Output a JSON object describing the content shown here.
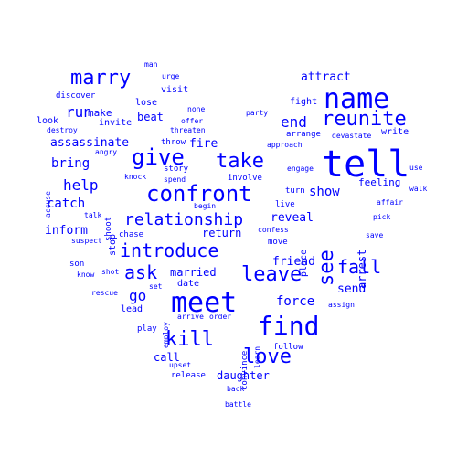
{
  "word_color": "#0000ff",
  "background": "#ffffff",
  "words": [
    {
      "text": "tell",
      "orientation": "horizontal"
    },
    {
      "text": "name",
      "orientation": "horizontal"
    },
    {
      "text": "meet",
      "orientation": "horizontal"
    },
    {
      "text": "find",
      "orientation": "horizontal"
    },
    {
      "text": "confront",
      "orientation": "horizontal"
    },
    {
      "text": "reunite",
      "orientation": "horizontal"
    },
    {
      "text": "marry",
      "orientation": "horizontal"
    },
    {
      "text": "give",
      "orientation": "horizontal"
    },
    {
      "text": "take",
      "orientation": "horizontal"
    },
    {
      "text": "leave",
      "orientation": "horizontal"
    },
    {
      "text": "love",
      "orientation": "horizontal"
    },
    {
      "text": "kill",
      "orientation": "horizontal"
    },
    {
      "text": "see",
      "orientation": "vertical"
    },
    {
      "text": "introduce",
      "orientation": "horizontal"
    },
    {
      "text": "relationship",
      "orientation": "horizontal"
    },
    {
      "text": "ask",
      "orientation": "horizontal"
    },
    {
      "text": "fall",
      "orientation": "horizontal"
    },
    {
      "text": "help",
      "orientation": "horizontal"
    },
    {
      "text": "run",
      "orientation": "horizontal"
    },
    {
      "text": "end",
      "orientation": "horizontal"
    },
    {
      "text": "bring",
      "orientation": "horizontal"
    },
    {
      "text": "catch",
      "orientation": "horizontal"
    },
    {
      "text": "show",
      "orientation": "horizontal"
    },
    {
      "text": "go",
      "orientation": "horizontal"
    },
    {
      "text": "force",
      "orientation": "horizontal"
    },
    {
      "text": "attract",
      "orientation": "horizontal"
    },
    {
      "text": "assassinate",
      "orientation": "horizontal"
    },
    {
      "text": "fire",
      "orientation": "horizontal"
    },
    {
      "text": "inform",
      "orientation": "horizontal"
    },
    {
      "text": "married",
      "orientation": "horizontal"
    },
    {
      "text": "return",
      "orientation": "horizontal"
    },
    {
      "text": "friend",
      "orientation": "horizontal"
    },
    {
      "text": "send",
      "orientation": "horizontal"
    },
    {
      "text": "reveal",
      "orientation": "horizontal"
    },
    {
      "text": "feeling",
      "orientation": "horizontal"
    },
    {
      "text": "arrest",
      "orientation": "vertical"
    },
    {
      "text": "daughter",
      "orientation": "horizontal"
    },
    {
      "text": "call",
      "orientation": "horizontal"
    },
    {
      "text": "beat",
      "orientation": "horizontal"
    },
    {
      "text": "make",
      "orientation": "horizontal"
    },
    {
      "text": "fight",
      "orientation": "horizontal"
    },
    {
      "text": "visit",
      "orientation": "horizontal"
    },
    {
      "text": "lose",
      "orientation": "horizontal"
    },
    {
      "text": "invite",
      "orientation": "horizontal"
    },
    {
      "text": "look",
      "orientation": "horizontal"
    },
    {
      "text": "write",
      "orientation": "horizontal"
    },
    {
      "text": "arrange",
      "orientation": "horizontal"
    },
    {
      "text": "story",
      "orientation": "horizontal"
    },
    {
      "text": "chase",
      "orientation": "horizontal"
    },
    {
      "text": "date",
      "orientation": "horizontal"
    },
    {
      "text": "lead",
      "orientation": "horizontal"
    },
    {
      "text": "move",
      "orientation": "horizontal"
    },
    {
      "text": "son",
      "orientation": "horizontal"
    },
    {
      "text": "place",
      "orientation": "vertical"
    },
    {
      "text": "stop",
      "orientation": "vertical"
    },
    {
      "text": "shoot",
      "orientation": "vertical"
    },
    {
      "text": "discover",
      "orientation": "horizontal"
    },
    {
      "text": "follow",
      "orientation": "horizontal"
    },
    {
      "text": "release",
      "orientation": "horizontal"
    },
    {
      "text": "play",
      "orientation": "horizontal"
    },
    {
      "text": "convince",
      "orientation": "vertical"
    },
    {
      "text": "involve",
      "orientation": "horizontal"
    },
    {
      "text": "throw",
      "orientation": "horizontal"
    },
    {
      "text": "engage",
      "orientation": "horizontal"
    },
    {
      "text": "turn",
      "orientation": "horizontal"
    },
    {
      "text": "live",
      "orientation": "horizontal"
    },
    {
      "text": "rescue",
      "orientation": "horizontal"
    },
    {
      "text": "back",
      "orientation": "horizontal"
    },
    {
      "text": "pick",
      "orientation": "horizontal"
    },
    {
      "text": "save",
      "orientation": "horizontal"
    },
    {
      "text": "affair",
      "orientation": "horizontal"
    },
    {
      "text": "spend",
      "orientation": "horizontal"
    },
    {
      "text": "begin",
      "orientation": "horizontal"
    },
    {
      "text": "knock",
      "orientation": "horizontal"
    },
    {
      "text": "angry",
      "orientation": "horizontal"
    },
    {
      "text": "destroy",
      "orientation": "horizontal"
    },
    {
      "text": "accuse",
      "orientation": "vertical"
    },
    {
      "text": "suspect",
      "orientation": "horizontal"
    },
    {
      "text": "talk",
      "orientation": "horizontal"
    },
    {
      "text": "know",
      "orientation": "horizontal"
    },
    {
      "text": "shot",
      "orientation": "horizontal"
    },
    {
      "text": "set",
      "orientation": "horizontal"
    },
    {
      "text": "employ",
      "orientation": "vertical"
    },
    {
      "text": "arrive",
      "orientation": "horizontal"
    },
    {
      "text": "order",
      "orientation": "horizontal"
    },
    {
      "text": "learn",
      "orientation": "vertical"
    },
    {
      "text": "upset",
      "orientation": "horizontal"
    },
    {
      "text": "battle",
      "orientation": "horizontal"
    },
    {
      "text": "assign",
      "orientation": "horizontal"
    },
    {
      "text": "confess",
      "orientation": "horizontal"
    },
    {
      "text": "approach",
      "orientation": "horizontal"
    },
    {
      "text": "devastate",
      "orientation": "horizontal"
    },
    {
      "text": "party",
      "orientation": "horizontal"
    },
    {
      "text": "offer",
      "orientation": "horizontal"
    },
    {
      "text": "threaten",
      "orientation": "horizontal"
    },
    {
      "text": "none",
      "orientation": "horizontal"
    },
    {
      "text": "urge",
      "orientation": "horizontal"
    },
    {
      "text": "man",
      "orientation": "horizontal"
    },
    {
      "text": "use",
      "orientation": "horizontal"
    },
    {
      "text": "walk",
      "orientation": "horizontal"
    }
  ]
}
